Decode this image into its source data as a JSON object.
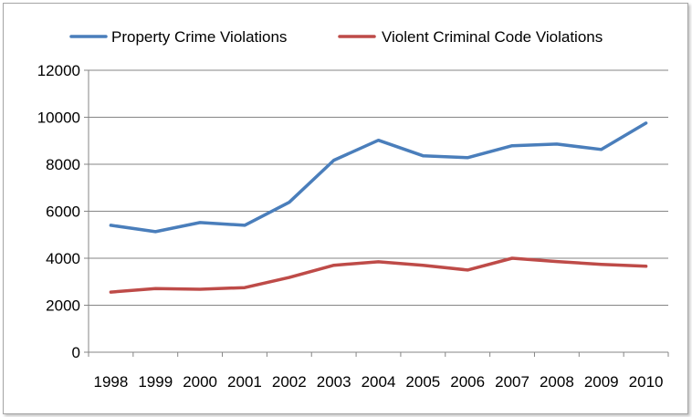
{
  "chart_data": {
    "type": "line",
    "title": "",
    "xlabel": "",
    "ylabel": "",
    "categories": [
      "1998",
      "1999",
      "2000",
      "2001",
      "2002",
      "2003",
      "2004",
      "2005",
      "2006",
      "2007",
      "2008",
      "2009",
      "2010"
    ],
    "ylim": [
      0,
      12000
    ],
    "yticks": [
      "0",
      "2000",
      "4000",
      "6000",
      "8000",
      "10000",
      "12000"
    ],
    "grid": true,
    "legend_position": "top",
    "series": [
      {
        "name": "Property Crime Violations",
        "color": "#4a7ebb",
        "values": [
          5400,
          5130,
          5520,
          5400,
          6380,
          8170,
          9020,
          8360,
          8280,
          8790,
          8860,
          8630,
          9750
        ]
      },
      {
        "name": "Violent Criminal Code Violations",
        "color": "#be4b48",
        "values": [
          2560,
          2710,
          2680,
          2750,
          3180,
          3700,
          3850,
          3700,
          3500,
          4000,
          3860,
          3740,
          3660
        ]
      }
    ]
  }
}
